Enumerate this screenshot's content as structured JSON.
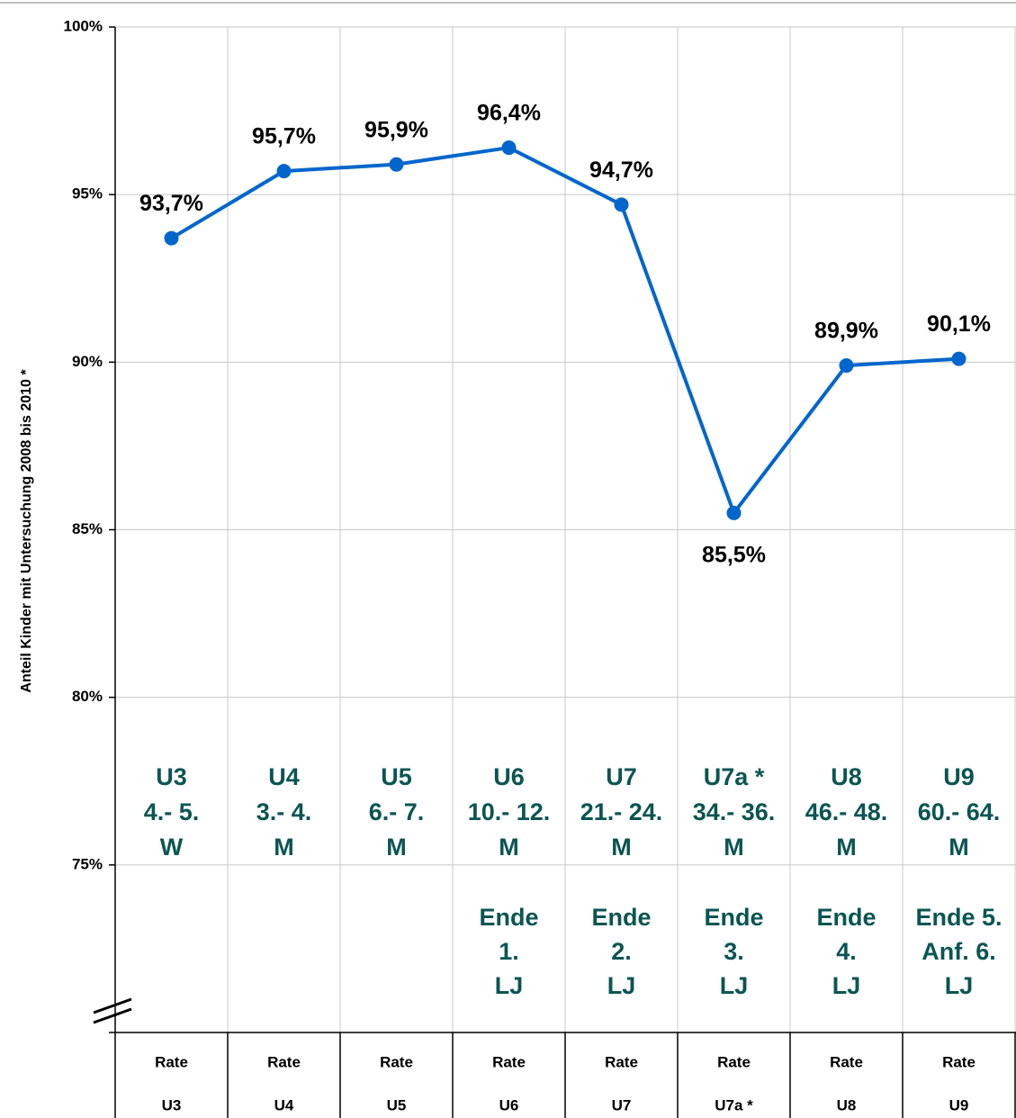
{
  "chart_data": {
    "type": "line",
    "y_label": "Anteil Kinder mit Untersuchung 2008 bis 2010 *",
    "categories": [
      [
        "Rate",
        "U3"
      ],
      [
        "Rate",
        "U4"
      ],
      [
        "Rate",
        "U5"
      ],
      [
        "Rate",
        "U6"
      ],
      [
        "Rate",
        "U7"
      ],
      [
        "Rate",
        "U7a *"
      ],
      [
        "Rate",
        "U8"
      ],
      [
        "Rate",
        "U9"
      ]
    ],
    "values": [
      93.7,
      95.7,
      95.9,
      96.4,
      94.7,
      85.5,
      89.9,
      90.1
    ],
    "value_labels": [
      "93,7%",
      "95,7%",
      "95,9%",
      "96,4%",
      "94,7%",
      "85,5%",
      "89,9%",
      "90,1%"
    ],
    "color": "#0066cc",
    "exam_labels": [
      [
        "U3",
        "4.- 5.",
        "W"
      ],
      [
        "U4",
        "3.- 4.",
        "M"
      ],
      [
        "U5",
        "6.- 7.",
        "M"
      ],
      [
        "U6",
        "10.- 12.",
        "M"
      ],
      [
        "U7",
        "21.- 24.",
        "M"
      ],
      [
        "U7a *",
        "34.- 36.",
        "M"
      ],
      [
        "U8",
        "46.- 48.",
        "M"
      ],
      [
        "U9",
        "60.- 64.",
        "M"
      ]
    ],
    "age_labels": [
      [],
      [],
      [],
      [
        "Ende",
        "1.",
        "LJ"
      ],
      [
        "Ende",
        "2.",
        "LJ"
      ],
      [
        "Ende",
        "3.",
        "LJ"
      ],
      [
        "Ende",
        "4.",
        "LJ"
      ],
      [
        "Ende 5.",
        "Anf. 6.",
        "LJ"
      ]
    ],
    "ylim": [
      70,
      100
    ],
    "yticks": [
      {
        "value": 75,
        "label": "75%"
      },
      {
        "value": 80,
        "label": "80%"
      },
      {
        "value": 85,
        "label": "85%"
      },
      {
        "value": 90,
        "label": "90%"
      },
      {
        "value": 95,
        "label": "95%"
      },
      {
        "value": 100,
        "label": "100%"
      }
    ],
    "grid": true
  }
}
